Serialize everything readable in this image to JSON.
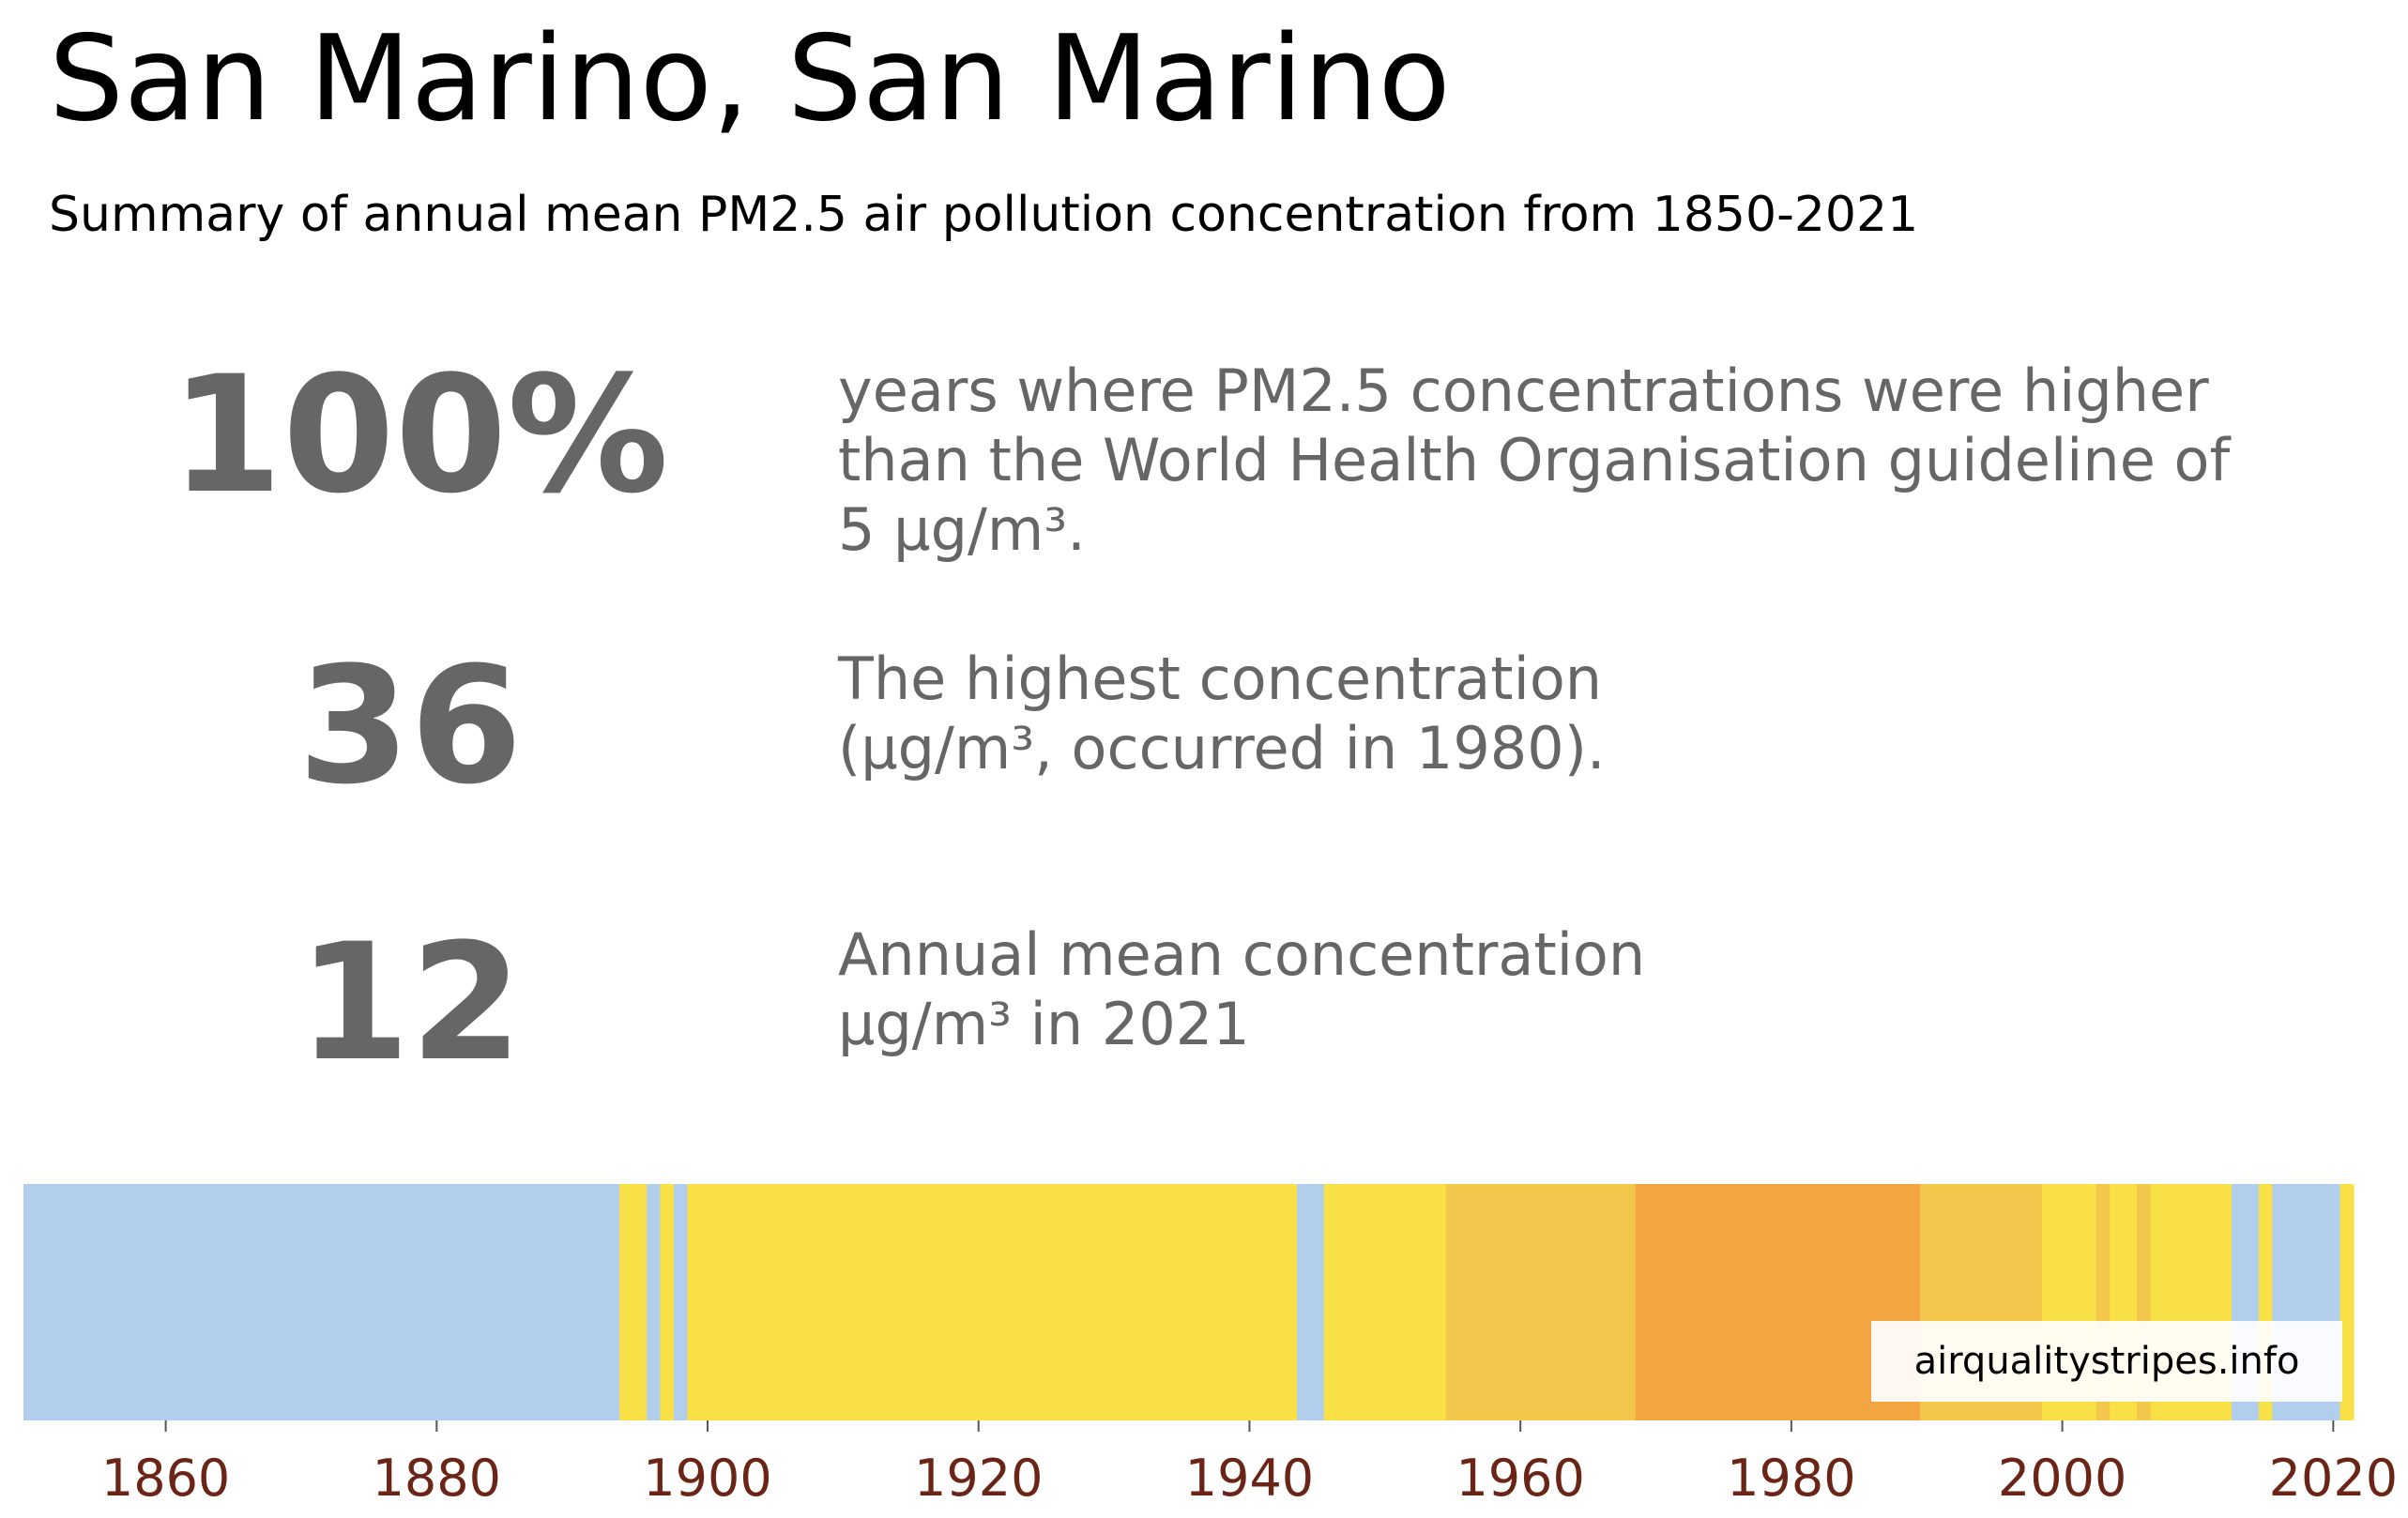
{
  "header": {
    "title": "San Marino, San Marino",
    "subtitle": "Summary of annual mean PM2.5 air pollution concentration from 1850-2021"
  },
  "stats": [
    {
      "value": "100%",
      "description": "years where PM2.5 concentrations were higher than the World Health Organisation guideline of 5 µg/m³."
    },
    {
      "value": "36",
      "description": "The highest concentration (µg/m³, occurred in 1980)."
    },
    {
      "value": "12",
      "description": "Annual mean concentration µg/m³ in 2021"
    }
  ],
  "footer": {
    "site": "airqualitystripes.info"
  },
  "colors": {
    "text_stats": "#666666",
    "tick_label": "#6b2516",
    "stripe_blue": "#b1cfec",
    "stripe_yellow": "#f9e047",
    "stripe_gold": "#f2c74b",
    "stripe_orange": "#f2a540"
  },
  "chart_data": {
    "type": "heatmap",
    "title": "",
    "xlabel": "",
    "ylabel": "",
    "xlim": [
      1850,
      2022
    ],
    "x_ticks": [
      1860,
      1880,
      1900,
      1920,
      1940,
      1960,
      1980,
      2000,
      2020
    ],
    "grid": false,
    "color_bands": [
      {
        "start": 1850,
        "end": 1894,
        "color": "#b1cfec"
      },
      {
        "start": 1894,
        "end": 1896,
        "color": "#f9e047"
      },
      {
        "start": 1896,
        "end": 1897,
        "color": "#b1cfec"
      },
      {
        "start": 1897,
        "end": 1898,
        "color": "#f9e047"
      },
      {
        "start": 1898,
        "end": 1899,
        "color": "#b1cfec"
      },
      {
        "start": 1899,
        "end": 1944,
        "color": "#f9e047"
      },
      {
        "start": 1944,
        "end": 1946,
        "color": "#b1cfec"
      },
      {
        "start": 1946,
        "end": 1955,
        "color": "#f9e047"
      },
      {
        "start": 1955,
        "end": 1969,
        "color": "#f2c74b"
      },
      {
        "start": 1969,
        "end": 1990,
        "color": "#f2a540"
      },
      {
        "start": 1990,
        "end": 1999,
        "color": "#f2c74b"
      },
      {
        "start": 1999,
        "end": 2003,
        "color": "#f9e047"
      },
      {
        "start": 2003,
        "end": 2004,
        "color": "#f2c74b"
      },
      {
        "start": 2004,
        "end": 2006,
        "color": "#f9e047"
      },
      {
        "start": 2006,
        "end": 2007,
        "color": "#f2c74b"
      },
      {
        "start": 2007,
        "end": 2013,
        "color": "#f9e047"
      },
      {
        "start": 2013,
        "end": 2015,
        "color": "#b1cfec"
      },
      {
        "start": 2015,
        "end": 2016,
        "color": "#f9e047"
      },
      {
        "start": 2016,
        "end": 2021,
        "color": "#b1cfec"
      },
      {
        "start": 2021,
        "end": 2022,
        "color": "#f9e047"
      }
    ]
  }
}
